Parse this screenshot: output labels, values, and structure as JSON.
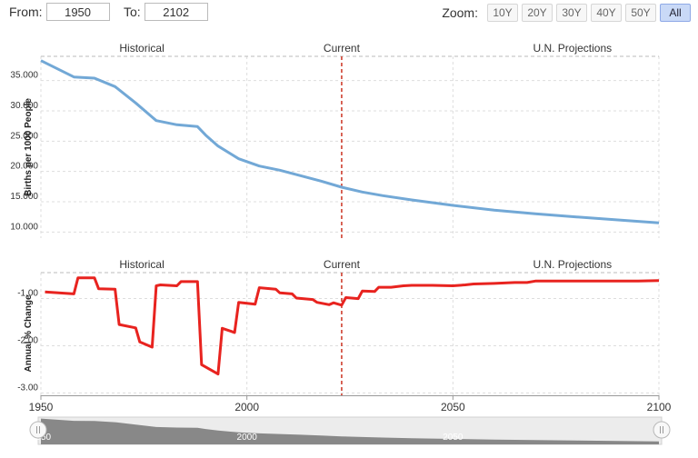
{
  "controls": {
    "from_label": "From:",
    "from_value": "1950",
    "to_label": "To:",
    "to_value": "2102",
    "zoom_label": "Zoom:",
    "zoom_buttons": [
      "10Y",
      "20Y",
      "30Y",
      "40Y",
      "50Y",
      "All"
    ],
    "zoom_active": "All"
  },
  "colors": {
    "birth_rate_line": "#72a8d6",
    "change_line": "#e8231f",
    "current_marker": "#cc3322",
    "navigator_fill": "#888888"
  },
  "chart_data": [
    {
      "type": "line",
      "title": "",
      "xlabel": "",
      "ylabel": "Births per 1000 People",
      "xlim": [
        1950,
        2100
      ],
      "ylim": [
        9,
        39
      ],
      "yticks": [
        10,
        15,
        20,
        25,
        30,
        35
      ],
      "ytick_labels": [
        "10.000",
        "15.000",
        "20.000",
        "25.000",
        "30.000",
        "35.000"
      ],
      "region_labels": [
        "Historical",
        "Current",
        "U.N. Projections"
      ],
      "current_year": 2023,
      "grid": true,
      "series": [
        {
          "x": [
            1950,
            1958,
            1963,
            1968,
            1973,
            1978,
            1983,
            1988,
            1990,
            1993,
            1998,
            2003,
            2008,
            2013,
            2018,
            2023,
            2028,
            2033,
            2040,
            2050,
            2060,
            2070,
            2080,
            2090,
            2100
          ],
          "y": [
            38.3,
            35.6,
            35.4,
            34.0,
            31.3,
            28.4,
            27.7,
            27.4,
            26.0,
            24.2,
            22.1,
            20.9,
            20.2,
            19.3,
            18.4,
            17.4,
            16.6,
            16.0,
            15.3,
            14.4,
            13.6,
            13.0,
            12.5,
            12.0,
            11.5
          ]
        }
      ]
    },
    {
      "type": "line",
      "title": "",
      "xlabel": "",
      "ylabel": "Annual % Change",
      "xlim": [
        1950,
        2100
      ],
      "ylim": [
        -3.05,
        -0.45
      ],
      "yticks": [
        -1.0,
        -2.0,
        -3.0
      ],
      "ytick_labels": [
        "-1.00",
        "-2.00",
        "-3.00"
      ],
      "xticks": [
        1950,
        2000,
        2050,
        2100
      ],
      "region_labels": [
        "Historical",
        "Current",
        "U.N. Projections"
      ],
      "current_year": 2023,
      "grid": true,
      "series": [
        {
          "x": [
            1951,
            1958,
            1959,
            1963,
            1964,
            1968,
            1969,
            1973,
            1974,
            1977,
            1978,
            1979,
            1983,
            1984,
            1988,
            1989,
            1993,
            1994,
            1997,
            1998,
            2002,
            2003,
            2007,
            2008,
            2011,
            2012,
            2016,
            2017,
            2020,
            2021,
            2023,
            2024,
            2027,
            2028,
            2031,
            2032,
            2035,
            2038,
            2040,
            2045,
            2050,
            2053,
            2055,
            2060,
            2065,
            2068,
            2070,
            2075,
            2080,
            2085,
            2090,
            2095,
            2100
          ],
          "y": [
            -0.86,
            -0.9,
            -0.56,
            -0.56,
            -0.79,
            -0.8,
            -1.55,
            -1.62,
            -1.92,
            -2.03,
            -0.73,
            -0.71,
            -0.73,
            -0.64,
            -0.64,
            -2.4,
            -2.6,
            -1.63,
            -1.72,
            -1.08,
            -1.12,
            -0.77,
            -0.8,
            -0.88,
            -0.9,
            -0.99,
            -1.02,
            -1.08,
            -1.13,
            -1.09,
            -1.14,
            -0.98,
            -1.0,
            -0.84,
            -0.85,
            -0.76,
            -0.76,
            -0.73,
            -0.72,
            -0.72,
            -0.73,
            -0.71,
            -0.69,
            -0.68,
            -0.66,
            -0.66,
            -0.63,
            -0.63,
            -0.63,
            -0.63,
            -0.63,
            -0.63,
            -0.62
          ]
        }
      ]
    }
  ],
  "navigator": {
    "tick_labels": [
      "1950",
      "2000",
      "2050"
    ]
  }
}
